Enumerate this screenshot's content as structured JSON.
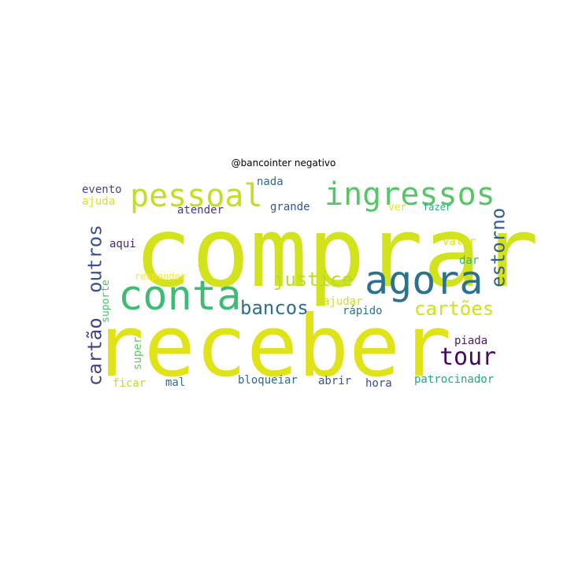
{
  "chart_data": {
    "type": "wordcloud",
    "title": "@bancointer negativo",
    "words": [
      {
        "text": "comprar",
        "color": "#d2e21b"
      },
      {
        "text": "receber",
        "color": "#e0e318"
      },
      {
        "text": "conta",
        "color": "#3dbc74"
      },
      {
        "text": "agora",
        "color": "#2c728e"
      },
      {
        "text": "ingressos",
        "color": "#56c667"
      },
      {
        "text": "pessoal",
        "color": "#c2df23"
      },
      {
        "text": "justice",
        "color": "#b5de2b"
      },
      {
        "text": "cartões",
        "color": "#d0e11c"
      },
      {
        "text": "bancos",
        "color": "#2d708e"
      },
      {
        "text": "tour",
        "color": "#46085c"
      },
      {
        "text": "outros",
        "color": "#3b528b"
      },
      {
        "text": "cartão",
        "color": "#414487"
      },
      {
        "text": "estorno",
        "color": "#355f8d"
      },
      {
        "text": "evento",
        "color": "#3e4989"
      },
      {
        "text": "ajuda",
        "color": "#d8e219"
      },
      {
        "text": "nada",
        "color": "#31688e"
      },
      {
        "text": "atender",
        "color": "#443a83"
      },
      {
        "text": "grande",
        "color": "#39568c"
      },
      {
        "text": "ver",
        "color": "#e5e419"
      },
      {
        "text": "fazer",
        "color": "#26ad81"
      },
      {
        "text": "aqui",
        "color": "#482878"
      },
      {
        "text": "valor",
        "color": "#dde318"
      },
      {
        "text": "dar",
        "color": "#35b779"
      },
      {
        "text": "responder",
        "color": "#fde725"
      },
      {
        "text": "suporte",
        "color": "#4ac16d"
      },
      {
        "text": "ajudar",
        "color": "#d0e11c"
      },
      {
        "text": "rápido",
        "color": "#2a788e"
      },
      {
        "text": "piada",
        "color": "#481a6c"
      },
      {
        "text": "super",
        "color": "#5ec962"
      },
      {
        "text": "ficar",
        "color": "#b8de29"
      },
      {
        "text": "mal",
        "color": "#2c728e"
      },
      {
        "text": "bloqueiar",
        "color": "#31688e"
      },
      {
        "text": "abrir",
        "color": "#3b528b"
      },
      {
        "text": "hora",
        "color": "#3e4a89"
      },
      {
        "text": "patrocinador",
        "color": "#22a884"
      }
    ]
  }
}
